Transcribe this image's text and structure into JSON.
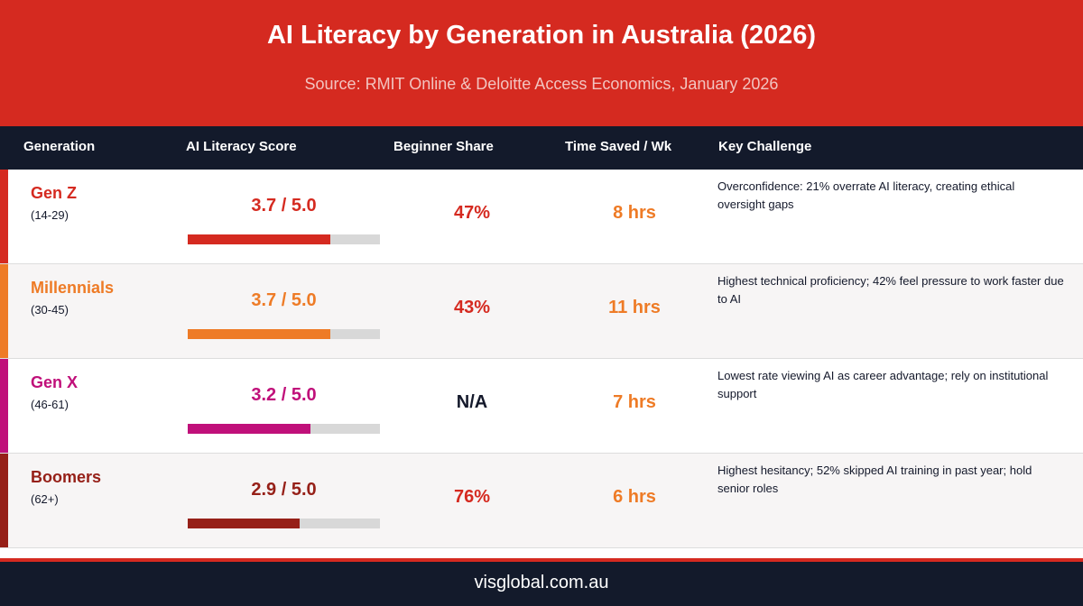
{
  "header": {
    "title": "AI Literacy by Generation in Australia (2026)",
    "subtitle": "Source: RMIT Online & Deloitte Access Economics, January 2026"
  },
  "columns": {
    "generation": "Generation",
    "score": "AI Literacy Score",
    "beginner": "Beginner Share",
    "time_saved": "Time Saved / Wk",
    "challenge": "Key Challenge"
  },
  "rows": [
    {
      "name": "Gen Z",
      "range": "(14-29)",
      "score_text": "3.7 / 5.0",
      "score_value": 3.7,
      "score_max": 5.0,
      "beginner_share": "47%",
      "time_saved": "8 hrs",
      "challenge": "Overconfidence: 21% overrate AI literacy, creating ethical oversight gaps",
      "color": "#d52a20"
    },
    {
      "name": "Millennials",
      "range": "(30-45)",
      "score_text": "3.7 / 5.0",
      "score_value": 3.7,
      "score_max": 5.0,
      "beginner_share": "43%",
      "time_saved": "11 hrs",
      "challenge": "Highest technical proficiency; 42% feel pressure to work faster due to AI",
      "color": "#ee7b26"
    },
    {
      "name": "Gen X",
      "range": "(46-61)",
      "score_text": "3.2 / 5.0",
      "score_value": 3.2,
      "score_max": 5.0,
      "beginner_share": "N/A",
      "time_saved": "7 hrs",
      "challenge": "Lowest rate viewing AI as career advantage; rely on institutional support",
      "color": "#c0107a"
    },
    {
      "name": "Boomers",
      "range": "(62+)",
      "score_text": "2.9 / 5.0",
      "score_value": 2.9,
      "score_max": 5.0,
      "beginner_share": "76%",
      "time_saved": "6 hrs",
      "challenge": "Highest hesitancy; 52% skipped AI training in past year; hold senior roles",
      "color": "#962018"
    }
  ],
  "footer": {
    "text": "visglobal.com.au"
  }
}
